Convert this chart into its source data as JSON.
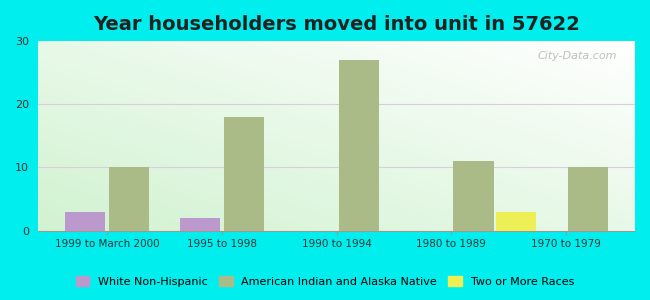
{
  "title": "Year householders moved into unit in 57622",
  "categories": [
    "1999 to March 2000",
    "1995 to 1998",
    "1990 to 1994",
    "1980 to 1989",
    "1970 to 1979"
  ],
  "series": {
    "White Non-Hispanic": {
      "values": [
        3,
        2,
        0,
        0,
        0
      ],
      "color": "#bb99cc"
    },
    "American Indian and Alaska Native": {
      "values": [
        10,
        18,
        27,
        11,
        10
      ],
      "color": "#aabb88"
    },
    "Two or More Races": {
      "values": [
        0,
        0,
        0,
        3,
        0
      ],
      "color": "#eeee55"
    }
  },
  "ylim": [
    0,
    30
  ],
  "yticks": [
    0,
    10,
    20,
    30
  ],
  "background_color": "#00eeee",
  "bar_width": 0.35,
  "title_fontsize": 14,
  "watermark": "City-Data.com"
}
